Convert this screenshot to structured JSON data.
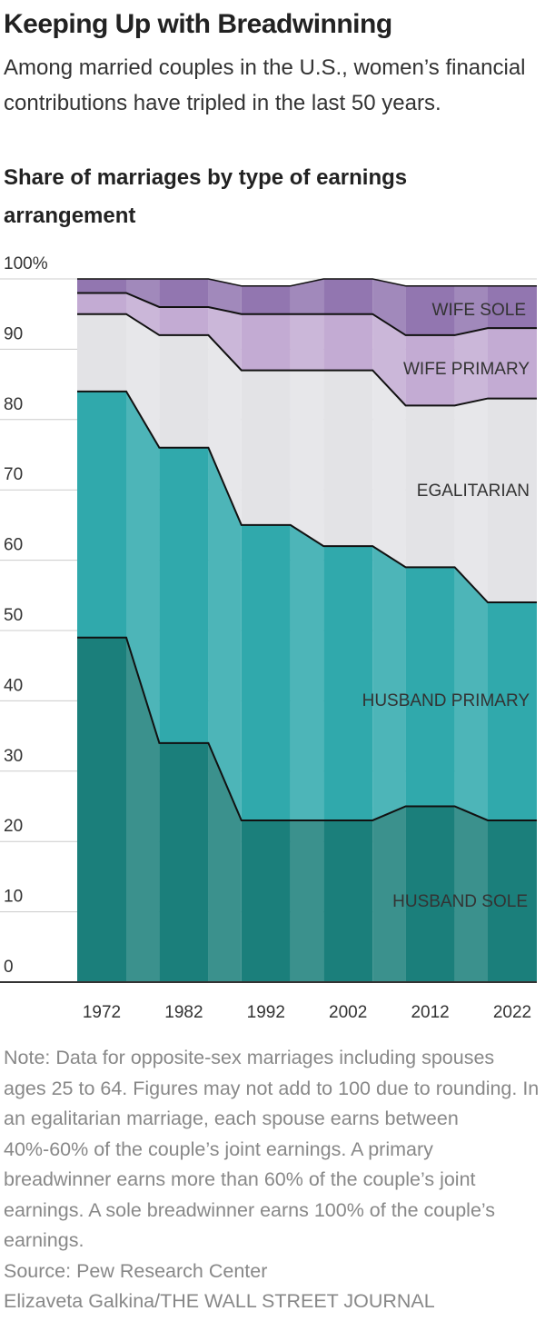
{
  "title": "Keeping Up with Breadwinning",
  "subtitle": "Among married couples in the U.S., women’s financial contributions have tripled in the last 50 years.",
  "chart_data": {
    "type": "stacked-step-area",
    "title": "Share of marriages by type of earnings arrangement",
    "categories": [
      "1972",
      "1982",
      "1992",
      "2002",
      "2012",
      "2022"
    ],
    "series": [
      {
        "name": "HUSBAND SOLE",
        "color": "#1b7f7b",
        "values": [
          49,
          34,
          23,
          23,
          25,
          23
        ]
      },
      {
        "name": "HUSBAND PRIMARY",
        "color": "#30a9ac",
        "values": [
          35,
          42,
          42,
          39,
          34,
          31
        ]
      },
      {
        "name": "EGALITARIAN",
        "color": "#e3e3e6",
        "values": [
          11,
          16,
          22,
          25,
          23,
          29
        ]
      },
      {
        "name": "WIFE PRIMARY",
        "color": "#c3abd3",
        "values": [
          3,
          4,
          8,
          8,
          10,
          10
        ]
      },
      {
        "name": "WIFE SOLE",
        "color": "#9276b0",
        "values": [
          2,
          4,
          4,
          5,
          7,
          6
        ]
      }
    ],
    "ylim": [
      0,
      100
    ],
    "yticks": [
      0,
      10,
      20,
      30,
      40,
      50,
      60,
      70,
      80,
      90,
      {
        "value": 100,
        "label": "100%"
      }
    ],
    "grid": true
  },
  "note": "Note: Data for opposite-sex marriages including spouses ages 25 to 64. Figures may not add to 100 due to rounding. In an egalitarian marriage, each spouse earns between 40%-60% of the couple’s joint earnings. A primary breadwinner earns more than 60% of the couple’s joint earnings. A sole breadwinner earns 100% of the couple’s earnings.",
  "source": "Source: Pew Research Center",
  "credit": "Elizaveta Galkina/THE WALL STREET JOURNAL"
}
